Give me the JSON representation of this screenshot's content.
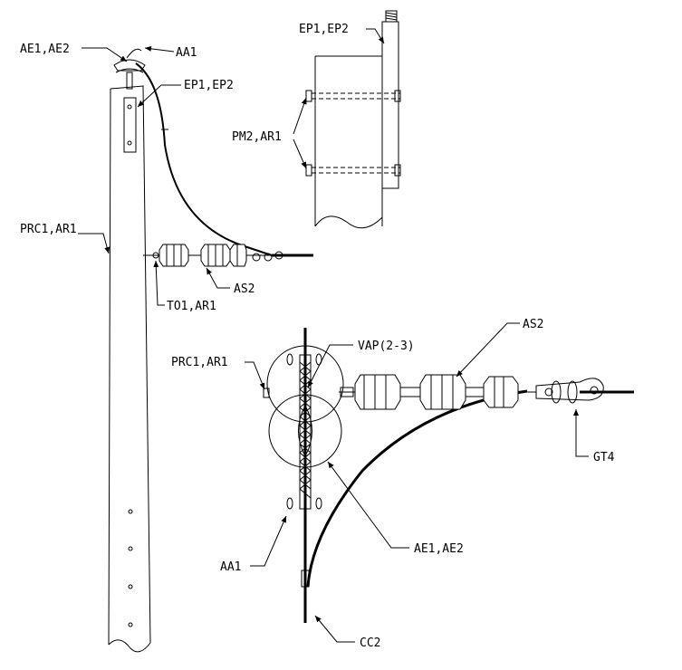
{
  "labels": {
    "ae_top": "AE1,AE2",
    "aa_top": "AA1",
    "ep_pole": "EP1,EP2",
    "ep_detail": "EP1,EP2",
    "pm2": "PM2,AR1",
    "prc_pole": "PRC1,AR1",
    "as2_pole": "AS2",
    "to1": "TO1,AR1",
    "as2_detail": "AS2",
    "prc_detail": "PRC1,AR1",
    "vap": "VAP(2-3)",
    "gt4": "GT4",
    "aa_detail": "AA1",
    "ae_detail": "AE1,AE2",
    "cc2": "CC2"
  }
}
